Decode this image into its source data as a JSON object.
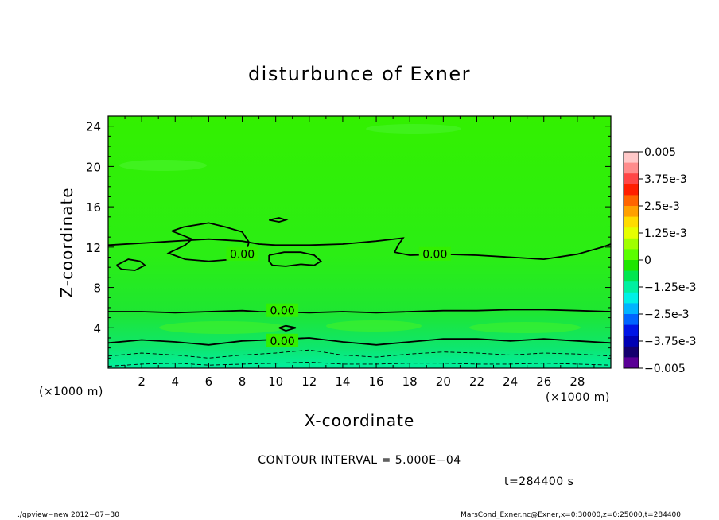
{
  "chart_data": {
    "type": "heatmap",
    "title": "disturbunce of Exner",
    "xlabel": "X-coordinate",
    "ylabel": "Z-coordinate",
    "x_unit": "(×1000 m)",
    "y_unit": "(×1000 m)",
    "xlim": [
      0,
      30
    ],
    "ylim": [
      0,
      25
    ],
    "x_ticks": [
      2,
      4,
      6,
      8,
      10,
      12,
      14,
      16,
      18,
      20,
      22,
      24,
      26,
      28
    ],
    "y_ticks": [
      4,
      8,
      12,
      16,
      20,
      24
    ],
    "x_tick_labels": [
      "2",
      "4",
      "6",
      "8",
      "10",
      "12",
      "14",
      "16",
      "18",
      "20",
      "22",
      "24",
      "26",
      "28"
    ],
    "y_tick_labels": [
      "4",
      "8",
      "12",
      "16",
      "20",
      "24"
    ],
    "colorbar": {
      "labels": [
        "0.005",
        "3.75e-3",
        "2.5e-3",
        "1.25e-3",
        "0",
        "−1.25e-3",
        "−2.5e-3",
        "−3.75e-3",
        "−0.005"
      ],
      "values": [
        0.005,
        0.00375,
        0.0025,
        0.00125,
        0,
        -0.00125,
        -0.0025,
        -0.00375,
        -0.005
      ],
      "colors_top_to_bottom": [
        "#ffc8c8",
        "#ff8c8c",
        "#ff4646",
        "#ff1e00",
        "#ff6400",
        "#ffa000",
        "#ffdc00",
        "#e6ff00",
        "#a0ff00",
        "#5aff00",
        "#1ee600",
        "#00e650",
        "#00f0a0",
        "#00f0e6",
        "#00b4ff",
        "#0064ff",
        "#0014e6",
        "#0000b4",
        "#14006e",
        "#5a0096"
      ]
    },
    "contour_labels": [
      {
        "text": "0.00",
        "x": 8.0,
        "z": 11.3
      },
      {
        "text": "0.00",
        "x": 19.5,
        "z": 11.3
      },
      {
        "text": "0.00",
        "x": 10.4,
        "z": 5.7
      },
      {
        "text": "0.00",
        "x": 10.4,
        "z": 2.7
      }
    ],
    "contours": {
      "solid": [
        [
          [
            0,
            12.2
          ],
          [
            2,
            12.4
          ],
          [
            4,
            12.6
          ],
          [
            6,
            12.8
          ],
          [
            8,
            12.6
          ],
          [
            9,
            12.3
          ],
          [
            10,
            12.2
          ],
          [
            11,
            12.2
          ],
          [
            12,
            12.2
          ],
          [
            14,
            12.3
          ],
          [
            16,
            12.6
          ],
          [
            17.6,
            12.9
          ],
          [
            17.3,
            12.2
          ],
          [
            17.1,
            11.5
          ],
          [
            18,
            11.2
          ],
          [
            20,
            11.3
          ],
          [
            22,
            11.2
          ],
          [
            24,
            11.0
          ],
          [
            26,
            10.8
          ],
          [
            28,
            11.3
          ],
          [
            29.5,
            12.0
          ],
          [
            30,
            12.3
          ]
        ],
        [
          [
            3.8,
            13.6
          ],
          [
            4.5,
            14.0
          ],
          [
            6,
            14.4
          ],
          [
            7,
            14.0
          ],
          [
            8,
            13.5
          ],
          [
            8.4,
            12.5
          ],
          [
            8.2,
            11.3
          ],
          [
            7.5,
            10.8
          ],
          [
            6,
            10.6
          ],
          [
            4.6,
            10.8
          ],
          [
            3.6,
            11.4
          ],
          [
            4.6,
            12.2
          ],
          [
            5,
            12.8
          ],
          [
            4.4,
            13.2
          ],
          [
            3.8,
            13.6
          ]
        ],
        [
          [
            9.6,
            11.2
          ],
          [
            10.5,
            11.5
          ],
          [
            11.5,
            11.5
          ],
          [
            12.3,
            11.2
          ],
          [
            12.7,
            10.6
          ],
          [
            12.3,
            10.2
          ],
          [
            11.5,
            10.3
          ],
          [
            10.6,
            10.1
          ],
          [
            9.8,
            10.2
          ],
          [
            9.6,
            10.6
          ],
          [
            9.6,
            11.2
          ]
        ],
        [
          [
            0.5,
            10.2
          ],
          [
            1.2,
            10.8
          ],
          [
            1.9,
            10.6
          ],
          [
            2.2,
            10.2
          ],
          [
            1.6,
            9.7
          ],
          [
            0.8,
            9.8
          ],
          [
            0.5,
            10.2
          ]
        ],
        [
          [
            9.6,
            14.7
          ],
          [
            10.2,
            14.9
          ],
          [
            10.6,
            14.7
          ],
          [
            10.2,
            14.5
          ],
          [
            9.6,
            14.7
          ]
        ],
        [
          [
            0,
            5.6
          ],
          [
            2,
            5.6
          ],
          [
            4,
            5.5
          ],
          [
            6,
            5.6
          ],
          [
            8,
            5.7
          ],
          [
            9,
            5.6
          ],
          [
            12,
            5.5
          ],
          [
            14,
            5.6
          ],
          [
            16,
            5.5
          ],
          [
            18,
            5.6
          ],
          [
            20,
            5.7
          ],
          [
            22,
            5.7
          ],
          [
            24,
            5.8
          ],
          [
            26,
            5.8
          ],
          [
            28,
            5.7
          ],
          [
            30,
            5.6
          ]
        ],
        [
          [
            0,
            2.5
          ],
          [
            2,
            2.8
          ],
          [
            4,
            2.6
          ],
          [
            6,
            2.3
          ],
          [
            8,
            2.7
          ],
          [
            9.5,
            2.8
          ],
          [
            12,
            3.0
          ],
          [
            14,
            2.6
          ],
          [
            16,
            2.3
          ],
          [
            18,
            2.6
          ],
          [
            20,
            2.9
          ],
          [
            22,
            2.9
          ],
          [
            24,
            2.7
          ],
          [
            26,
            2.9
          ],
          [
            28,
            2.7
          ],
          [
            30,
            2.5
          ]
        ],
        [
          [
            10.2,
            4.0
          ],
          [
            10.6,
            4.2
          ],
          [
            11.2,
            4.0
          ],
          [
            10.6,
            3.7
          ],
          [
            10.2,
            4.0
          ]
        ]
      ],
      "dashed": [
        [
          [
            0,
            1.2
          ],
          [
            2,
            1.5
          ],
          [
            4,
            1.3
          ],
          [
            6,
            1.0
          ],
          [
            8,
            1.3
          ],
          [
            10,
            1.5
          ],
          [
            12,
            1.8
          ],
          [
            14,
            1.3
          ],
          [
            16,
            1.1
          ],
          [
            18,
            1.4
          ],
          [
            20,
            1.6
          ],
          [
            22,
            1.5
          ],
          [
            24,
            1.3
          ],
          [
            26,
            1.5
          ],
          [
            28,
            1.4
          ],
          [
            30,
            1.2
          ]
        ],
        [
          [
            0,
            0.2
          ],
          [
            2,
            0.4
          ],
          [
            4,
            0.5
          ],
          [
            6,
            0.3
          ],
          [
            8,
            0.4
          ],
          [
            10,
            0.5
          ],
          [
            12,
            0.6
          ],
          [
            14,
            0.4
          ],
          [
            16,
            0.4
          ],
          [
            18,
            0.5
          ],
          [
            20,
            0.5
          ],
          [
            22,
            0.4
          ],
          [
            24,
            0.4
          ],
          [
            26,
            0.5
          ],
          [
            28,
            0.4
          ],
          [
            30,
            0.3
          ]
        ]
      ]
    }
  },
  "annotations": {
    "contour_interval": "CONTOUR INTERVAL = 5.000E−04",
    "time": "t=284400 s",
    "footer_left": "./gpview−new   2012−07−30",
    "footer_right": "MarsCond_Exner.nc@Exner,x=0:30000,z=0:25000,t=284400"
  },
  "colors": {
    "field_base": "#33f000",
    "field_light": "#45f226",
    "field_near_zero": "#14e64a",
    "field_bottom": "#00f0a0"
  }
}
